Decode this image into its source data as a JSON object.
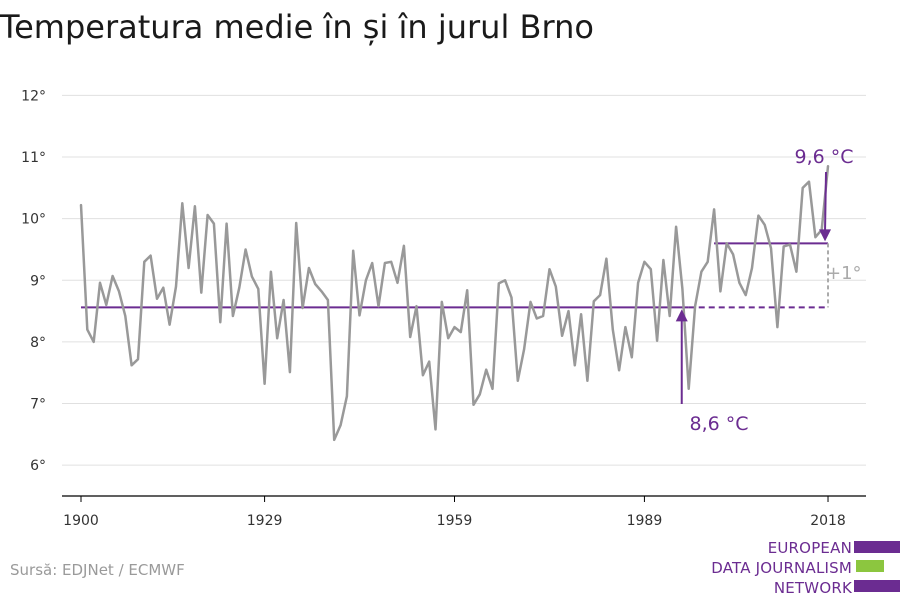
{
  "title": "Temperatura medie în și în jurul Brno",
  "source": "Sursă: EDJNet / ECMWF",
  "logo": {
    "lines": [
      "EUROPEAN",
      "DATA JOURNALISM",
      "NETWORK"
    ]
  },
  "colors": {
    "series": "#999999",
    "accent": "#6b2c91",
    "logo_green": "#8cc63f",
    "grid": "#e0e0e0",
    "axis": "#000000"
  },
  "chart_data": {
    "type": "line",
    "title": "Temperatura medie în și în jurul Brno",
    "xlabel": "",
    "ylabel": "",
    "x_ticks": [
      1900,
      1929,
      1959,
      1989,
      2018
    ],
    "y_ticks": [
      6,
      7,
      8,
      9,
      10,
      11,
      12
    ],
    "y_tick_labels": [
      "6°",
      "7°",
      "8°",
      "9°",
      "10°",
      "11°",
      "12°"
    ],
    "xlim": [
      1897,
      2024
    ],
    "ylim": [
      5.5,
      12.25
    ],
    "grid": true,
    "series": [
      {
        "x": [
          1900,
          1901,
          1902,
          1903,
          1904,
          1905,
          1906,
          1907,
          1908,
          1909,
          1910,
          1911,
          1912,
          1913,
          1914,
          1915,
          1916,
          1917,
          1918,
          1919,
          1920,
          1921,
          1922,
          1923,
          1924,
          1925,
          1926,
          1927,
          1928,
          1929,
          1930,
          1931,
          1932,
          1933,
          1934,
          1935,
          1936,
          1937,
          1938,
          1939,
          1940,
          1941,
          1942,
          1943,
          1944,
          1945,
          1946,
          1947,
          1948,
          1949,
          1950,
          1951,
          1952,
          1953,
          1954,
          1955,
          1956,
          1957,
          1958,
          1959,
          1960,
          1961,
          1962,
          1963,
          1964,
          1965,
          1966,
          1967,
          1968,
          1969,
          1970,
          1971,
          1972,
          1973,
          1974,
          1975,
          1976,
          1977,
          1978,
          1979,
          1980,
          1981,
          1982,
          1983,
          1984,
          1985,
          1986,
          1987,
          1988,
          1989,
          1990,
          1991,
          1992,
          1993,
          1994,
          1995,
          1996,
          1997,
          1998,
          1999,
          2000,
          2001,
          2002,
          2003,
          2004,
          2005,
          2006,
          2007,
          2008,
          2009,
          2010,
          2011,
          2012,
          2013,
          2014,
          2015,
          2016,
          2017,
          2018
        ],
        "values": [
          10.22,
          8.2,
          8.0,
          8.96,
          8.6,
          9.07,
          8.82,
          8.42,
          7.62,
          7.72,
          9.3,
          9.4,
          8.7,
          8.88,
          8.28,
          8.9,
          10.25,
          9.2,
          10.2,
          8.8,
          10.06,
          9.92,
          8.32,
          9.92,
          8.42,
          8.88,
          9.5,
          9.06,
          8.86,
          7.32,
          9.14,
          8.06,
          8.68,
          7.51,
          9.93,
          8.55,
          9.2,
          8.94,
          8.82,
          8.68,
          6.41,
          6.65,
          7.12,
          9.48,
          8.43,
          9.0,
          9.28,
          8.58,
          9.28,
          9.3,
          8.96,
          9.56,
          8.08,
          8.58,
          7.46,
          7.68,
          6.58,
          8.65,
          8.06,
          8.24,
          8.16,
          8.84,
          6.98,
          7.15,
          7.55,
          7.24,
          8.95,
          9.0,
          8.72,
          7.37,
          7.88,
          8.65,
          8.38,
          8.42,
          9.18,
          8.9,
          8.1,
          8.5,
          7.62,
          8.45,
          7.37,
          8.66,
          8.76,
          9.35,
          8.2,
          7.54,
          8.24,
          7.75,
          8.96,
          9.3,
          9.18,
          8.02,
          9.33,
          8.42,
          9.87,
          8.86,
          7.24,
          8.58,
          9.14,
          9.3,
          10.15,
          8.82,
          9.6,
          9.42,
          8.96,
          8.76,
          9.2,
          10.05,
          9.9,
          9.52,
          8.24,
          9.55,
          9.58,
          9.14,
          10.5,
          10.6,
          9.7,
          9.82,
          10.85
        ]
      }
    ],
    "reference_lines": [
      {
        "label": "8,6 °C",
        "value": 8.56,
        "x_start": 1900,
        "x_solid_end": 1996,
        "x_end": 2018
      },
      {
        "label": "9,6 °C",
        "value": 9.6,
        "x_start": 2000,
        "x_end": 2018
      }
    ],
    "difference_label": "+1°"
  }
}
